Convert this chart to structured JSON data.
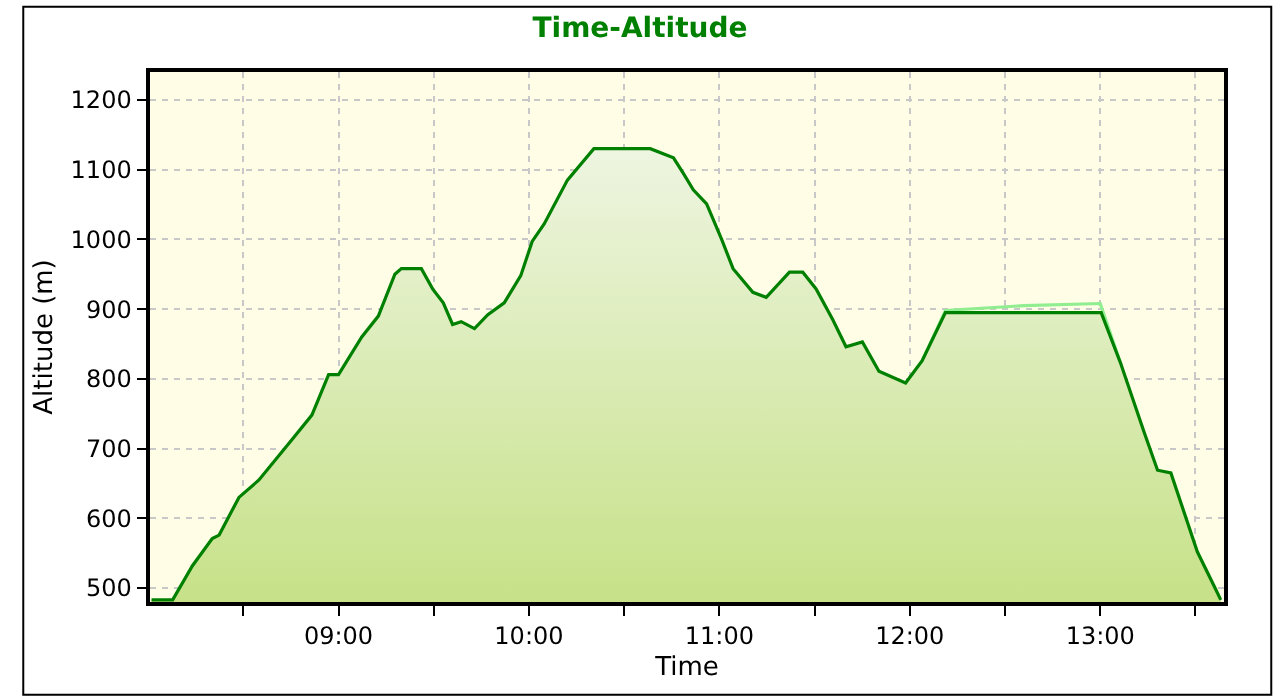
{
  "chart_data": {
    "type": "area",
    "title": "Time-Altitude",
    "xlabel": "Time",
    "ylabel": "Altitude (m)",
    "xlim": [
      8.01,
      13.65
    ],
    "ylim": [
      480,
      1240
    ],
    "xticks": [
      {
        "value": 8.5,
        "label": null
      },
      {
        "value": 9,
        "label": "09:00"
      },
      {
        "value": 9.5,
        "label": null
      },
      {
        "value": 10,
        "label": "10:00"
      },
      {
        "value": 10.5,
        "label": null
      },
      {
        "value": 11,
        "label": "11:00"
      },
      {
        "value": 11.5,
        "label": null
      },
      {
        "value": 12,
        "label": "12:00"
      },
      {
        "value": 12.5,
        "label": null
      },
      {
        "value": 13,
        "label": "13:00"
      },
      {
        "value": 13.5,
        "label": null
      }
    ],
    "yticks": [
      500,
      600,
      700,
      800,
      900,
      1000,
      1100,
      1200
    ],
    "grid": true,
    "line_style": "solid",
    "marker": "none",
    "series": [
      {
        "type": "line",
        "color": "#90ee90",
        "x": [
          12.065,
          12.187,
          12.6,
          13.0,
          13.109
        ],
        "values": [
          826,
          898,
          905,
          908,
          821
        ]
      },
      {
        "color": "#008000",
        "x": [
          8.018,
          8.129,
          8.233,
          8.337,
          8.373,
          8.477,
          8.582,
          8.756,
          8.86,
          8.948,
          9.0,
          9.122,
          9.209,
          9.296,
          9.33,
          9.435,
          9.494,
          9.55,
          9.599,
          9.644,
          9.714,
          9.784,
          9.87,
          9.957,
          10.017,
          10.08,
          10.202,
          10.341,
          10.637,
          10.759,
          10.81,
          10.863,
          10.933,
          11.012,
          11.072,
          11.176,
          11.246,
          11.368,
          11.438,
          11.508,
          11.595,
          11.665,
          11.751,
          11.838,
          11.978,
          12.065,
          12.187,
          12.831,
          13.005,
          13.109,
          13.231,
          13.301,
          13.371,
          13.51,
          13.598,
          13.633
        ],
        "values": [
          483,
          483,
          532,
          571,
          576,
          630,
          655,
          713,
          748,
          806,
          806,
          860,
          890,
          950,
          958,
          958,
          929,
          909,
          878,
          882,
          872,
          892,
          909,
          948,
          997,
          1022,
          1085,
          1130,
          1130,
          1117,
          1095,
          1071,
          1051,
          1000,
          958,
          924,
          917,
          953,
          953,
          929,
          885,
          846,
          853,
          811,
          794,
          826,
          895,
          895,
          895,
          821,
          723,
          669,
          665,
          552,
          503,
          483
        ]
      }
    ]
  }
}
